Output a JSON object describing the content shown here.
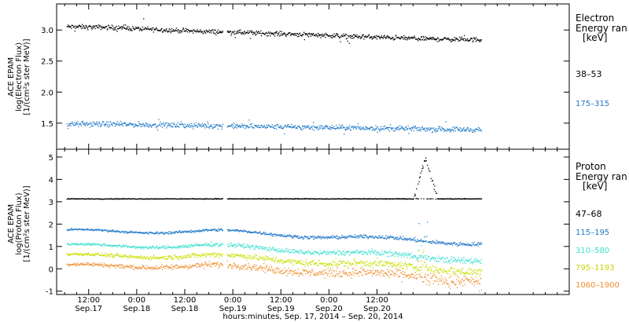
{
  "chart_data": [
    {
      "type": "scatter",
      "ylabel_lines": [
        "ACE EPAM",
        "log(Electron Flux)",
        "[1/(cm²s ster MeV)]"
      ],
      "ylim": [
        1.08,
        3.42
      ],
      "yticks": [
        "1.5",
        "2.0",
        "2.5",
        "3.0"
      ],
      "ytick_values": [
        1.5,
        2.0,
        2.5,
        3.0
      ],
      "legend_title": [
        "Electron",
        "Energy ran",
        "[keV]"
      ],
      "series": [
        {
          "name": "38–53",
          "color": "#000000",
          "base": 3.0,
          "values_hourly_mid": [
            3.06,
            3.05,
            3.02,
            2.99,
            2.97,
            2.95,
            2.93,
            2.9,
            2.88,
            2.86,
            2.85
          ]
        },
        {
          "name": "175–315",
          "color": "#1f78c8",
          "base": 1.46,
          "values_hourly_mid": [
            1.49,
            1.49,
            1.48,
            1.47,
            1.46,
            1.45,
            1.44,
            1.43,
            1.42,
            1.41,
            1.4
          ]
        }
      ]
    },
    {
      "type": "scatter",
      "ylabel_lines": [
        "ACE EPAM",
        "log(Proton Flux)",
        "[1/(cm²s ster MeV)]"
      ],
      "ylim": [
        -1.15,
        5.35
      ],
      "yticks": [
        "-1",
        "0",
        "1",
        "2",
        "3",
        "4",
        "5"
      ],
      "ytick_values": [
        -1,
        0,
        1,
        2,
        3,
        4,
        5
      ],
      "legend_title": [
        "Proton",
        "Energy ran",
        "[keV]"
      ],
      "series": [
        {
          "name": "47–68",
          "color": "#000000",
          "base": 3.15
        },
        {
          "name": "115–195",
          "color": "#1f78c8",
          "base": 1.7
        },
        {
          "name": "310–580",
          "color": "#3ee0d0",
          "base": 1.05
        },
        {
          "name": "795–1193",
          "color": "#c8e000",
          "base": 0.6
        },
        {
          "name": "1060–1900",
          "color": "#f09030",
          "base": 0.15
        }
      ],
      "spike": {
        "peak": 5.0,
        "x_start_hours": 93.0,
        "x_end_hours": 99.0
      }
    }
  ],
  "xaxis": {
    "xlim_hours": [
      4.0,
      132.0
    ],
    "ticks": [
      {
        "hours": 12,
        "line1": "12:00",
        "line2": "Sep.17"
      },
      {
        "hours": 24,
        "line1": "0:00",
        "line2": "Sep.18"
      },
      {
        "hours": 36,
        "line1": "12:00",
        "line2": "Sep.18"
      },
      {
        "hours": 48,
        "line1": "0:00",
        "line2": "Sep.19"
      },
      {
        "hours": 60,
        "line1": "12:00",
        "line2": "Sep.19"
      },
      {
        "hours": 72,
        "line1": "0:00",
        "line2": "Sep.20"
      },
      {
        "hours": 84,
        "line1": "12:00",
        "line2": "Sep.20"
      }
    ],
    "title": "hours:minutes, Sep. 17, 2014 – Sep. 20, 2014",
    "data_end_hours": 110.0,
    "gap_hours": [
      45.5,
      46.5
    ]
  }
}
